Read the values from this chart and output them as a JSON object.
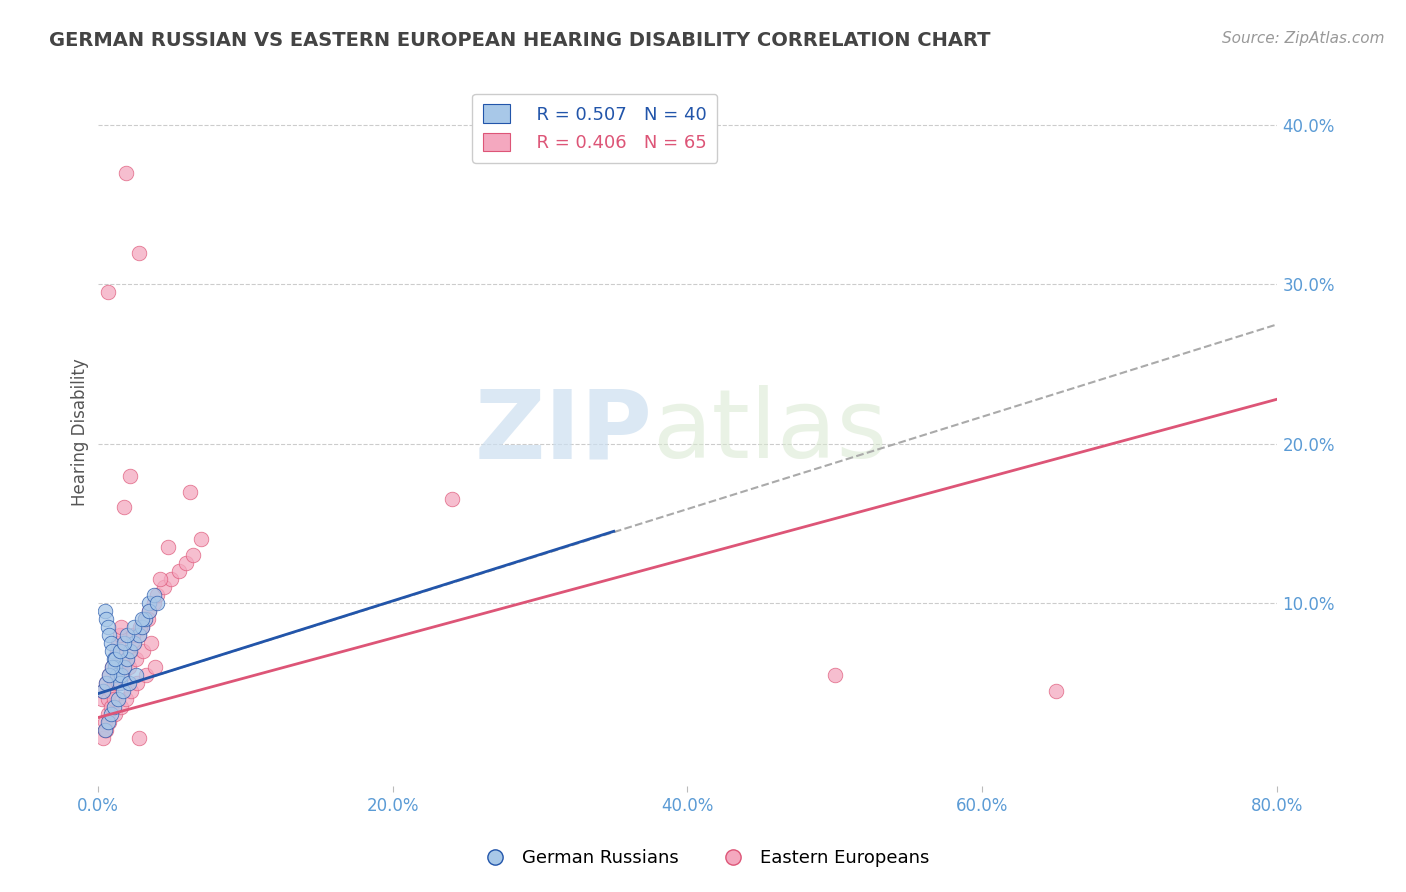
{
  "title": "GERMAN RUSSIAN VS EASTERN EUROPEAN HEARING DISABILITY CORRELATION CHART",
  "source": "Source: ZipAtlas.com",
  "xlabel_ticks": [
    "0.0%",
    "20.0%",
    "40.0%",
    "60.0%",
    "80.0%"
  ],
  "xlabel_tick_vals": [
    0.0,
    0.2,
    0.4,
    0.6,
    0.8
  ],
  "ylabel_ticks": [
    "10.0%",
    "20.0%",
    "30.0%",
    "40.0%"
  ],
  "ylabel_tick_vals": [
    0.1,
    0.2,
    0.3,
    0.4
  ],
  "xmin": 0.0,
  "xmax": 0.8,
  "ymin": -0.015,
  "ymax": 0.43,
  "legend_labels": [
    "German Russians",
    "Eastern Europeans"
  ],
  "legend_r": [
    "R = 0.507",
    "R = 0.406"
  ],
  "legend_n": [
    "N = 40",
    "N = 65"
  ],
  "scatter_blue": {
    "x": [
      0.005,
      0.006,
      0.007,
      0.008,
      0.009,
      0.01,
      0.011,
      0.012,
      0.013,
      0.015,
      0.016,
      0.018,
      0.02,
      0.022,
      0.025,
      0.028,
      0.03,
      0.032,
      0.035,
      0.038,
      0.004,
      0.006,
      0.008,
      0.01,
      0.012,
      0.015,
      0.018,
      0.02,
      0.025,
      0.03,
      0.035,
      0.04,
      0.005,
      0.007,
      0.009,
      0.011,
      0.014,
      0.017,
      0.021,
      0.026
    ],
    "y": [
      0.095,
      0.09,
      0.085,
      0.08,
      0.075,
      0.07,
      0.065,
      0.06,
      0.055,
      0.05,
      0.055,
      0.06,
      0.065,
      0.07,
      0.075,
      0.08,
      0.085,
      0.09,
      0.1,
      0.105,
      0.045,
      0.05,
      0.055,
      0.06,
      0.065,
      0.07,
      0.075,
      0.08,
      0.085,
      0.09,
      0.095,
      0.1,
      0.02,
      0.025,
      0.03,
      0.035,
      0.04,
      0.045,
      0.05,
      0.055
    ]
  },
  "scatter_pink": {
    "x": [
      0.003,
      0.004,
      0.005,
      0.006,
      0.007,
      0.008,
      0.009,
      0.01,
      0.011,
      0.012,
      0.013,
      0.014,
      0.015,
      0.016,
      0.018,
      0.02,
      0.022,
      0.025,
      0.028,
      0.03,
      0.032,
      0.035,
      0.038,
      0.04,
      0.045,
      0.05,
      0.055,
      0.06,
      0.065,
      0.07,
      0.005,
      0.007,
      0.009,
      0.011,
      0.014,
      0.017,
      0.021,
      0.026,
      0.031,
      0.036,
      0.004,
      0.006,
      0.008,
      0.012,
      0.016,
      0.019,
      0.023,
      0.027,
      0.033,
      0.039,
      0.024,
      0.029,
      0.034,
      0.042,
      0.048,
      0.018,
      0.022,
      0.007,
      0.019,
      0.028,
      0.5,
      0.65,
      0.24,
      0.063,
      0.028
    ],
    "y": [
      0.04,
      0.045,
      0.02,
      0.05,
      0.04,
      0.055,
      0.045,
      0.06,
      0.05,
      0.065,
      0.07,
      0.075,
      0.08,
      0.085,
      0.06,
      0.065,
      0.07,
      0.075,
      0.08,
      0.085,
      0.09,
      0.095,
      0.1,
      0.105,
      0.11,
      0.115,
      0.12,
      0.125,
      0.13,
      0.14,
      0.025,
      0.03,
      0.035,
      0.04,
      0.05,
      0.055,
      0.06,
      0.065,
      0.07,
      0.075,
      0.015,
      0.02,
      0.025,
      0.03,
      0.035,
      0.04,
      0.045,
      0.05,
      0.055,
      0.06,
      0.08,
      0.085,
      0.09,
      0.115,
      0.135,
      0.16,
      0.18,
      0.295,
      0.37,
      0.32,
      0.055,
      0.045,
      0.165,
      0.17,
      0.015
    ]
  },
  "blue_line": {
    "x0": 0.0,
    "x1": 0.35,
    "y0": 0.043,
    "y1": 0.145
  },
  "pink_line": {
    "x0": 0.0,
    "x1": 0.8,
    "y0": 0.028,
    "y1": 0.228
  },
  "dashed_line": {
    "x0": 0.0,
    "x1": 0.8,
    "y0": 0.043,
    "y1": 0.275
  },
  "watermark_zip": "ZIP",
  "watermark_atlas": "atlas",
  "title_color": "#444444",
  "title_fontsize": 14,
  "source_color": "#999999",
  "source_fontsize": 11,
  "tick_label_color": "#5b9bd5",
  "blue_scatter_color": "#a8c8e8",
  "pink_scatter_color": "#f4a8bf",
  "blue_line_color": "#2255aa",
  "pink_line_color": "#dd5577",
  "dashed_line_color": "#aaaaaa",
  "grid_color": "#cccccc",
  "background_color": "#ffffff",
  "ylabel": "Hearing Disability"
}
